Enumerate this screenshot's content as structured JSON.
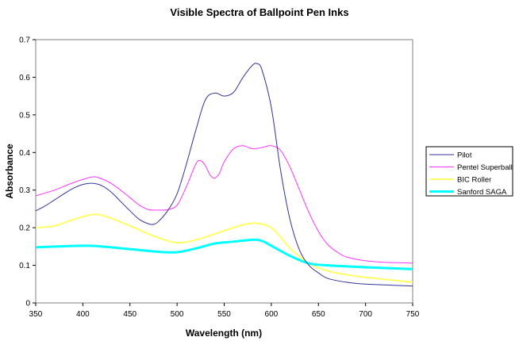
{
  "chart_data": {
    "type": "line",
    "title": "Visible Spectra of Ballpoint Pen Inks",
    "xlabel": "Wavelength (nm)",
    "ylabel": "Absorbance",
    "xlim": [
      350,
      750
    ],
    "ylim": [
      0,
      0.7
    ],
    "xticks": [
      "350",
      "400",
      "450",
      "500",
      "550",
      "600",
      "650",
      "700",
      "750"
    ],
    "yticks": [
      "0",
      "0.1",
      "0.2",
      "0.3",
      "0.4",
      "0.5",
      "0.6",
      "0.7"
    ],
    "grid": false,
    "legend_position": "right",
    "series": [
      {
        "name": "Pilot",
        "color": "#333399",
        "x": [
          350,
          360,
          370,
          380,
          390,
          400,
          410,
          420,
          430,
          440,
          450,
          460,
          470,
          475,
          480,
          490,
          500,
          510,
          520,
          530,
          540,
          550,
          560,
          570,
          580,
          585,
          590,
          600,
          610,
          620,
          630,
          640,
          650,
          660,
          680,
          700,
          750
        ],
        "y": [
          0.245,
          0.258,
          0.274,
          0.29,
          0.305,
          0.315,
          0.318,
          0.312,
          0.295,
          0.27,
          0.245,
          0.222,
          0.21,
          0.209,
          0.216,
          0.245,
          0.29,
          0.37,
          0.46,
          0.54,
          0.558,
          0.55,
          0.56,
          0.6,
          0.632,
          0.636,
          0.62,
          0.52,
          0.35,
          0.22,
          0.14,
          0.1,
          0.08,
          0.065,
          0.055,
          0.05,
          0.045
        ]
      },
      {
        "name": "Pentel Superball",
        "color": "#FF33FF",
        "x": [
          350,
          370,
          390,
          410,
          420,
          430,
          440,
          450,
          460,
          470,
          480,
          490,
          500,
          510,
          520,
          525,
          530,
          535,
          540,
          545,
          550,
          560,
          570,
          580,
          590,
          600,
          610,
          620,
          630,
          640,
          650,
          660,
          670,
          680,
          700,
          720,
          750
        ],
        "y": [
          0.285,
          0.3,
          0.32,
          0.335,
          0.33,
          0.318,
          0.3,
          0.28,
          0.26,
          0.248,
          0.247,
          0.248,
          0.26,
          0.31,
          0.37,
          0.378,
          0.365,
          0.34,
          0.332,
          0.345,
          0.375,
          0.41,
          0.418,
          0.41,
          0.413,
          0.418,
          0.405,
          0.36,
          0.3,
          0.24,
          0.19,
          0.155,
          0.135,
          0.122,
          0.112,
          0.108,
          0.106
        ]
      },
      {
        "name": "BIC Roller",
        "color": "#FFFF66",
        "x": [
          350,
          370,
          390,
          410,
          420,
          430,
          450,
          470,
          490,
          500,
          510,
          530,
          550,
          570,
          580,
          590,
          600,
          610,
          620,
          640,
          660,
          680,
          700,
          750
        ],
        "y": [
          0.2,
          0.205,
          0.222,
          0.235,
          0.233,
          0.225,
          0.205,
          0.183,
          0.165,
          0.16,
          0.162,
          0.175,
          0.192,
          0.208,
          0.212,
          0.21,
          0.2,
          0.175,
          0.145,
          0.105,
          0.085,
          0.075,
          0.068,
          0.055
        ]
      },
      {
        "name": "Sanford SAGA",
        "color": "#00FFFF",
        "x": [
          350,
          400,
          420,
          450,
          480,
          500,
          520,
          540,
          560,
          580,
          590,
          600,
          620,
          640,
          660,
          700,
          750
        ],
        "y": [
          0.148,
          0.152,
          0.15,
          0.143,
          0.136,
          0.135,
          0.145,
          0.158,
          0.163,
          0.168,
          0.165,
          0.152,
          0.125,
          0.105,
          0.1,
          0.095,
          0.09
        ]
      }
    ]
  }
}
